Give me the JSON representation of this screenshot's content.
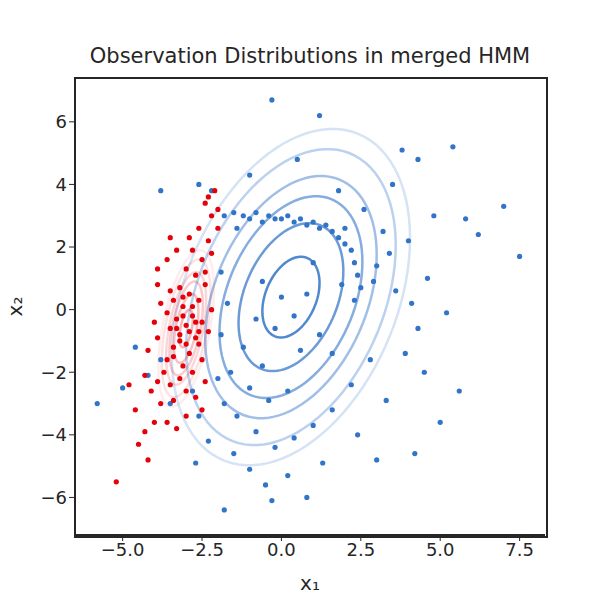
{
  "chart_data": {
    "type": "scatter",
    "title": "Observation Distributions in merged HMM",
    "x_label": "x₁",
    "y_label": "x₂",
    "xlim": [
      -6.5,
      8.3
    ],
    "ylim": [
      -7.2,
      7.4
    ],
    "xticks": [
      {
        "value": -5,
        "label": "−5.0"
      },
      {
        "value": -2.5,
        "label": "−2.5"
      },
      {
        "value": 0,
        "label": "0.0"
      },
      2.5,
      {
        "value": 5,
        "label": "5.0"
      },
      7.5
    ],
    "yticks": [
      {
        "value": -6,
        "label": "−6"
      },
      {
        "value": -4,
        "label": "−4"
      },
      {
        "value": -2,
        "label": "−2"
      },
      0,
      2,
      4,
      6
    ],
    "grid": false,
    "series": [
      {
        "color": "#3274c8",
        "contours": {
          "mean": [
            0.3,
            0.4
          ],
          "cov": [
            [
              2.25,
              1.13
            ],
            [
              1.13,
              4.62
            ]
          ],
          "levels": [
            0.6,
            1.1,
            1.5,
            1.8,
            2.2,
            2.5
          ]
        },
        "values": [
          [
            -1.8,
            3.0
          ],
          [
            -1.5,
            3.1
          ],
          [
            -1.2,
            3.0
          ],
          [
            -1.0,
            2.9
          ],
          [
            -0.8,
            3.1
          ],
          [
            -0.6,
            2.8
          ],
          [
            -0.4,
            3.0
          ],
          [
            -0.2,
            2.9
          ],
          [
            0.0,
            2.9
          ],
          [
            0.2,
            3.0
          ],
          [
            0.4,
            2.8
          ],
          [
            0.6,
            2.9
          ],
          [
            0.8,
            2.7
          ],
          [
            1.0,
            2.8
          ],
          [
            1.2,
            2.6
          ],
          [
            1.4,
            2.7
          ],
          [
            1.6,
            2.5
          ],
          [
            1.8,
            2.3
          ],
          [
            2.0,
            2.1
          ],
          [
            2.2,
            1.9
          ],
          [
            2.3,
            1.5
          ],
          [
            2.4,
            1.1
          ],
          [
            2.5,
            0.7
          ],
          [
            2.3,
            0.3
          ],
          [
            2.0,
            2.6
          ],
          [
            -1.4,
            2.6
          ],
          [
            -2.2,
            3.8
          ],
          [
            -2.6,
            4.0
          ],
          [
            -3.8,
            3.8
          ],
          [
            -1.0,
            4.3
          ],
          [
            0.5,
            4.8
          ],
          [
            1.2,
            6.2
          ],
          [
            -0.3,
            6.7
          ],
          [
            1.8,
            3.8
          ],
          [
            2.6,
            3.2
          ],
          [
            3.5,
            4.0
          ],
          [
            3.8,
            5.1
          ],
          [
            4.3,
            4.8
          ],
          [
            5.4,
            5.2
          ],
          [
            4.8,
            3.0
          ],
          [
            5.8,
            2.9
          ],
          [
            6.2,
            2.4
          ],
          [
            7.0,
            3.3
          ],
          [
            7.5,
            1.7
          ],
          [
            3.2,
            2.5
          ],
          [
            3.0,
            1.4
          ],
          [
            3.6,
            0.6
          ],
          [
            4.1,
            0.2
          ],
          [
            4.3,
            -0.6
          ],
          [
            4.6,
            1.0
          ],
          [
            3.9,
            -1.4
          ],
          [
            4.5,
            -2.0
          ],
          [
            5.6,
            -2.6
          ],
          [
            5.0,
            -3.6
          ],
          [
            4.2,
            -4.6
          ],
          [
            3.3,
            -2.9
          ],
          [
            2.8,
            -1.6
          ],
          [
            2.2,
            -2.4
          ],
          [
            1.6,
            -3.2
          ],
          [
            1.0,
            -3.7
          ],
          [
            0.4,
            -4.1
          ],
          [
            -0.2,
            -4.4
          ],
          [
            -0.8,
            -3.9
          ],
          [
            -1.4,
            -3.4
          ],
          [
            -1.8,
            -3.0
          ],
          [
            -2.0,
            -2.2
          ],
          [
            -1.6,
            -2.0
          ],
          [
            -1.0,
            -2.5
          ],
          [
            -0.4,
            -2.9
          ],
          [
            0.2,
            -2.6
          ],
          [
            -0.6,
            -1.8
          ],
          [
            -1.2,
            -1.2
          ],
          [
            -0.8,
            -0.3
          ],
          [
            -0.2,
            -0.6
          ],
          [
            0.4,
            -0.2
          ],
          [
            0.8,
            0.5
          ],
          [
            0.0,
            0.4
          ],
          [
            -0.6,
            0.9
          ],
          [
            1.2,
            -0.8
          ],
          [
            1.6,
            -1.4
          ],
          [
            -1.5,
            -4.6
          ],
          [
            -1.0,
            -5.1
          ],
          [
            -0.5,
            -5.6
          ],
          [
            0.2,
            -5.3
          ],
          [
            -1.8,
            -6.4
          ],
          [
            -0.3,
            -6.1
          ],
          [
            -2.3,
            -4.2
          ],
          [
            -2.6,
            -3.4
          ],
          [
            -2.8,
            -2.6
          ],
          [
            -3.5,
            -3.0
          ],
          [
            -4.2,
            -2.1
          ],
          [
            -5.0,
            -2.5
          ],
          [
            -5.8,
            -3.0
          ],
          [
            -4.6,
            -1.2
          ],
          [
            -3.8,
            -1.6
          ],
          [
            -2.7,
            -4.9
          ],
          [
            1.3,
            -4.9
          ],
          [
            2.4,
            -4.0
          ],
          [
            3.0,
            -4.8
          ],
          [
            0.8,
            -6.0
          ],
          [
            2.9,
            0.9
          ],
          [
            3.4,
            1.8
          ],
          [
            1.9,
            0.8
          ],
          [
            1.0,
            1.5
          ],
          [
            -1.9,
            1.2
          ],
          [
            -1.7,
            0.2
          ],
          [
            -1.9,
            -0.8
          ],
          [
            0.6,
            -1.3
          ],
          [
            5.2,
            -0.1
          ],
          [
            4.0,
            2.2
          ]
        ]
      },
      {
        "color": "#e6000a",
        "contours": {
          "mean": [
            -3.0,
            -0.6
          ],
          "cov": [
            [
              0.1225,
              0.175
            ],
            [
              0.175,
              1.0
            ]
          ],
          "levels": [
            0.6,
            1.1,
            1.5,
            1.8,
            2.2,
            2.5
          ]
        },
        "values": [
          [
            -3.0,
            -0.5
          ],
          [
            -2.8,
            -0.2
          ],
          [
            -3.2,
            -0.8
          ],
          [
            -2.6,
            0.3
          ],
          [
            -3.4,
            -1.2
          ],
          [
            -2.9,
            0.5
          ],
          [
            -3.1,
            0.1
          ],
          [
            -2.7,
            -0.9
          ],
          [
            -3.3,
            -0.3
          ],
          [
            -2.5,
            -0.4
          ],
          [
            -3.5,
            -0.6
          ],
          [
            -2.9,
            -1.4
          ],
          [
            -3.1,
            -1.8
          ],
          [
            -2.6,
            -1.1
          ],
          [
            -3.6,
            -1.6
          ],
          [
            -2.4,
            0.8
          ],
          [
            -2.7,
            1.1
          ],
          [
            -3.0,
            1.3
          ],
          [
            -2.5,
            1.6
          ],
          [
            -2.8,
            1.9
          ],
          [
            -2.3,
            2.2
          ],
          [
            -2.6,
            2.6
          ],
          [
            -2.2,
            3.0
          ],
          [
            -2.4,
            3.4
          ],
          [
            -2.1,
            3.8
          ],
          [
            -2.9,
            2.3
          ],
          [
            -3.2,
            0.7
          ],
          [
            -3.4,
            0.3
          ],
          [
            -3.6,
            -0.1
          ],
          [
            -3.8,
            0.2
          ],
          [
            -3.9,
            1.3
          ],
          [
            -3.6,
            1.6
          ],
          [
            -3.3,
            1.9
          ],
          [
            -3.7,
            -2.0
          ],
          [
            -3.9,
            -2.3
          ],
          [
            -4.1,
            -2.6
          ],
          [
            -4.3,
            -2.1
          ],
          [
            -3.5,
            -2.4
          ],
          [
            -3.2,
            -2.2
          ],
          [
            -2.8,
            -2.0
          ],
          [
            -3.0,
            -2.6
          ],
          [
            -3.4,
            -2.9
          ],
          [
            -3.8,
            -3.0
          ],
          [
            -4.0,
            -3.6
          ],
          [
            -4.3,
            -3.9
          ],
          [
            -4.5,
            -4.3
          ],
          [
            -4.2,
            -4.8
          ],
          [
            -3.6,
            -3.6
          ],
          [
            -5.2,
            -5.5
          ],
          [
            -4.6,
            -3.2
          ],
          [
            -4.8,
            -2.4
          ],
          [
            -4.2,
            -1.3
          ],
          [
            -3.9,
            -0.9
          ],
          [
            -2.5,
            -1.6
          ],
          [
            -2.3,
            -0.7
          ],
          [
            -2.2,
            0.0
          ],
          [
            -2.4,
            -2.3
          ],
          [
            -2.7,
            -2.8
          ],
          [
            -3.0,
            -3.4
          ],
          [
            -2.5,
            -3.2
          ],
          [
            -3.3,
            -3.8
          ],
          [
            -3.1,
            -0.2
          ],
          [
            -2.9,
            -0.7
          ],
          [
            -3.2,
            -1.0
          ],
          [
            -2.8,
            0.1
          ],
          [
            -3.0,
            -1.1
          ],
          [
            -3.3,
            -0.6
          ],
          [
            -2.7,
            -0.4
          ],
          [
            -3.1,
            0.4
          ],
          [
            -2.6,
            -0.7
          ],
          [
            -3.5,
            0.6
          ],
          [
            -3.4,
            -1.5
          ],
          [
            -2.4,
            1.2
          ],
          [
            -2.2,
            1.8
          ],
          [
            -2.0,
            2.6
          ],
          [
            -2.3,
            3.6
          ],
          [
            -2.0,
            3.2
          ],
          [
            -3.5,
            2.3
          ],
          [
            -3.9,
            0.8
          ],
          [
            -4.0,
            -0.4
          ]
        ]
      }
    ]
  }
}
